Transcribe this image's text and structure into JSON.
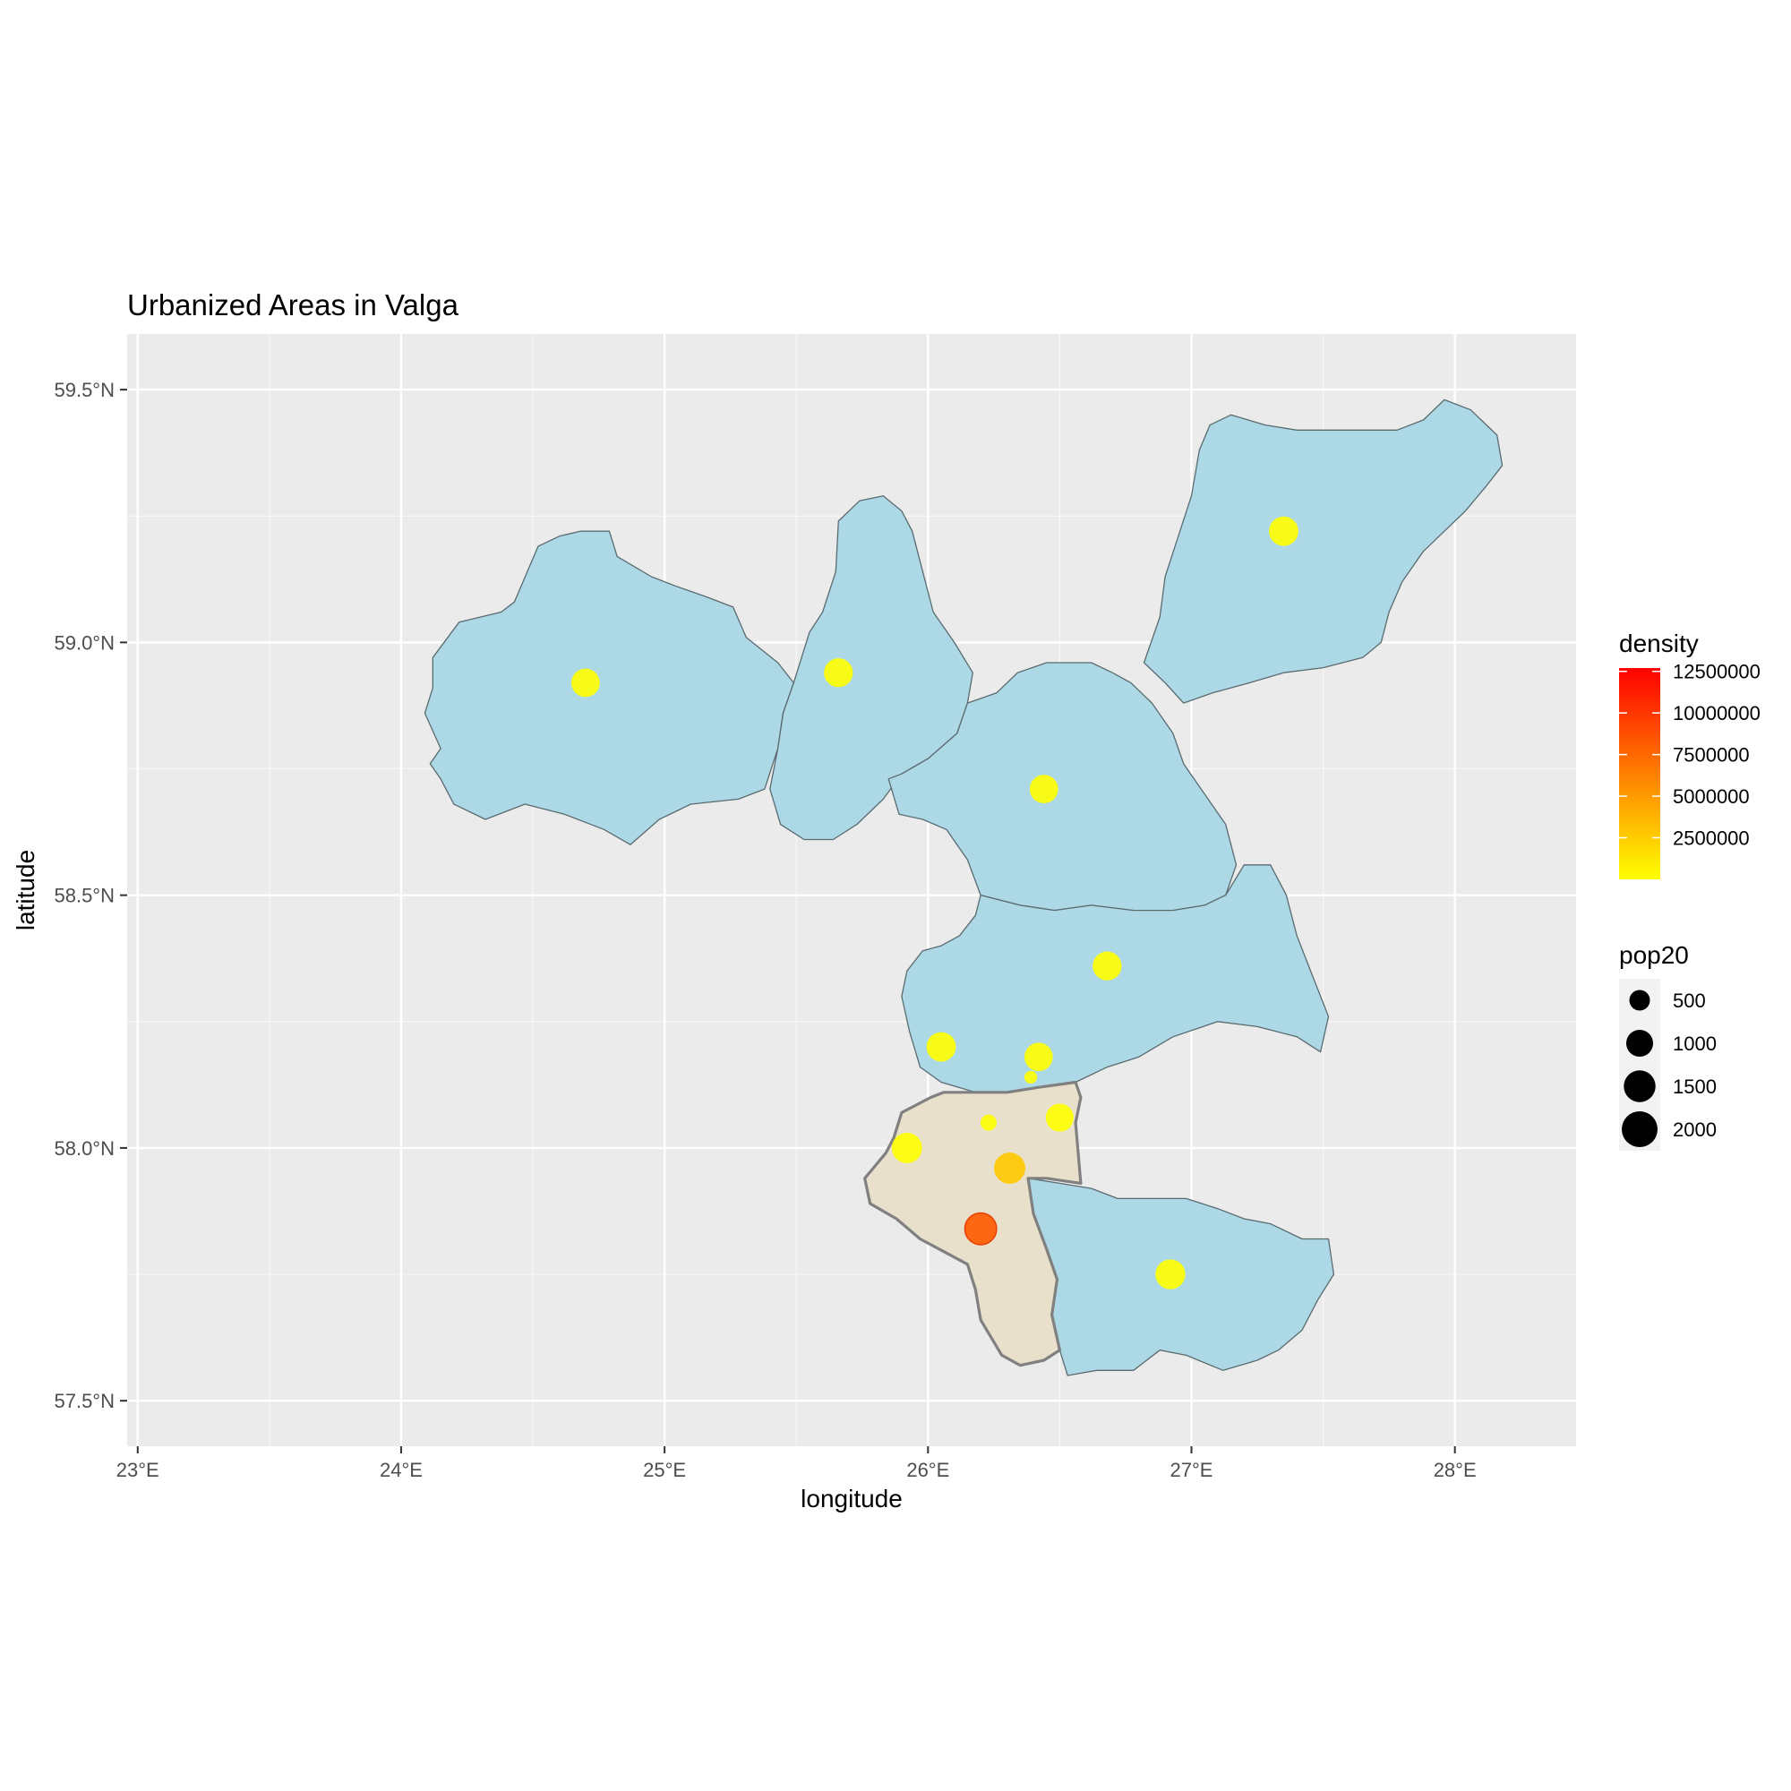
{
  "chart_data": {
    "type": "map",
    "title": "Urbanized Areas in Valga",
    "xlabel": "longitude",
    "ylabel": "latitude",
    "xlim": [
      22.96,
      28.46
    ],
    "ylim": [
      57.41,
      59.61
    ],
    "grid": true,
    "x_ticks": [
      {
        "value": 23,
        "label": "23°E"
      },
      {
        "value": 24,
        "label": "24°E"
      },
      {
        "value": 25,
        "label": "25°E"
      },
      {
        "value": 26,
        "label": "26°E"
      },
      {
        "value": 27,
        "label": "27°E"
      },
      {
        "value": 28,
        "label": "28°E"
      }
    ],
    "y_ticks": [
      {
        "value": 57.5,
        "label": "57.5°N"
      },
      {
        "value": 58.0,
        "label": "58.0°N"
      },
      {
        "value": 58.5,
        "label": "58.5°N"
      },
      {
        "value": 59.0,
        "label": "59.0°N"
      },
      {
        "value": 59.5,
        "label": "59.5°N"
      }
    ],
    "regions": [
      {
        "fill": "#add8e6",
        "highlight": false,
        "coords": [
          [
            24.12,
            58.97
          ],
          [
            24.22,
            59.04
          ],
          [
            24.38,
            59.06
          ],
          [
            24.43,
            59.08
          ],
          [
            24.52,
            59.19
          ],
          [
            24.6,
            59.21
          ],
          [
            24.68,
            59.22
          ],
          [
            24.79,
            59.22
          ],
          [
            24.82,
            59.17
          ],
          [
            24.95,
            59.13
          ],
          [
            25.05,
            59.11
          ],
          [
            25.16,
            59.09
          ],
          [
            25.26,
            59.07
          ],
          [
            25.31,
            59.01
          ],
          [
            25.43,
            58.96
          ],
          [
            25.49,
            58.92
          ],
          [
            25.45,
            58.86
          ],
          [
            25.43,
            58.79
          ],
          [
            25.38,
            58.71
          ],
          [
            25.28,
            58.69
          ],
          [
            25.1,
            58.68
          ],
          [
            24.98,
            58.65
          ],
          [
            24.87,
            58.6
          ],
          [
            24.77,
            58.63
          ],
          [
            24.62,
            58.66
          ],
          [
            24.47,
            58.68
          ],
          [
            24.32,
            58.65
          ],
          [
            24.2,
            58.68
          ],
          [
            24.15,
            58.73
          ],
          [
            24.11,
            58.76
          ],
          [
            24.15,
            58.79
          ],
          [
            24.09,
            58.86
          ],
          [
            24.12,
            58.91
          ]
        ]
      },
      {
        "fill": "#add8e6",
        "highlight": false,
        "coords": [
          [
            25.49,
            58.92
          ],
          [
            25.55,
            59.02
          ],
          [
            25.6,
            59.06
          ],
          [
            25.65,
            59.14
          ],
          [
            25.66,
            59.24
          ],
          [
            25.74,
            59.28
          ],
          [
            25.83,
            59.29
          ],
          [
            25.9,
            59.26
          ],
          [
            25.94,
            59.22
          ],
          [
            25.98,
            59.14
          ],
          [
            26.02,
            59.06
          ],
          [
            26.1,
            59.0
          ],
          [
            26.17,
            58.94
          ],
          [
            26.15,
            58.88
          ],
          [
            26.11,
            58.82
          ],
          [
            26.0,
            58.77
          ],
          [
            25.9,
            58.74
          ],
          [
            25.83,
            58.69
          ],
          [
            25.73,
            58.64
          ],
          [
            25.64,
            58.61
          ],
          [
            25.53,
            58.61
          ],
          [
            25.44,
            58.64
          ],
          [
            25.4,
            58.71
          ],
          [
            25.43,
            58.79
          ],
          [
            25.45,
            58.86
          ]
        ]
      },
      {
        "fill": "#add8e6",
        "highlight": false,
        "coords": [
          [
            26.15,
            58.88
          ],
          [
            26.26,
            58.9
          ],
          [
            26.34,
            58.94
          ],
          [
            26.45,
            58.96
          ],
          [
            26.55,
            58.96
          ],
          [
            26.62,
            58.96
          ],
          [
            26.7,
            58.94
          ],
          [
            26.77,
            58.92
          ],
          [
            26.85,
            58.88
          ],
          [
            26.93,
            58.82
          ],
          [
            26.97,
            58.76
          ],
          [
            27.05,
            58.7
          ],
          [
            27.13,
            58.64
          ],
          [
            27.17,
            58.56
          ],
          [
            27.13,
            58.5
          ],
          [
            27.05,
            58.48
          ],
          [
            26.93,
            58.47
          ],
          [
            26.78,
            58.47
          ],
          [
            26.62,
            58.48
          ],
          [
            26.48,
            58.47
          ],
          [
            26.35,
            58.48
          ],
          [
            26.2,
            58.5
          ],
          [
            26.15,
            58.57
          ],
          [
            26.07,
            58.63
          ],
          [
            25.98,
            58.65
          ],
          [
            25.89,
            58.66
          ],
          [
            25.85,
            58.73
          ],
          [
            25.9,
            58.74
          ],
          [
            26.0,
            58.77
          ],
          [
            26.11,
            58.82
          ]
        ]
      },
      {
        "fill": "#add8e6",
        "highlight": false,
        "coords": [
          [
            26.82,
            58.96
          ],
          [
            26.88,
            59.05
          ],
          [
            26.9,
            59.13
          ],
          [
            26.95,
            59.21
          ],
          [
            27.0,
            59.29
          ],
          [
            27.03,
            59.38
          ],
          [
            27.07,
            59.43
          ],
          [
            27.15,
            59.45
          ],
          [
            27.28,
            59.43
          ],
          [
            27.4,
            59.42
          ],
          [
            27.55,
            59.42
          ],
          [
            27.67,
            59.42
          ],
          [
            27.78,
            59.42
          ],
          [
            27.88,
            59.44
          ],
          [
            27.96,
            59.48
          ],
          [
            28.06,
            59.46
          ],
          [
            28.16,
            59.41
          ],
          [
            28.18,
            59.35
          ],
          [
            28.12,
            59.31
          ],
          [
            28.04,
            59.26
          ],
          [
            27.96,
            59.22
          ],
          [
            27.88,
            59.18
          ],
          [
            27.8,
            59.12
          ],
          [
            27.75,
            59.06
          ],
          [
            27.72,
            59.0
          ],
          [
            27.65,
            58.97
          ],
          [
            27.5,
            58.95
          ],
          [
            27.35,
            58.94
          ],
          [
            27.22,
            58.92
          ],
          [
            27.08,
            58.9
          ],
          [
            26.97,
            58.88
          ],
          [
            26.9,
            58.92
          ]
        ]
      },
      {
        "fill": "#add8e6",
        "highlight": false,
        "coords": [
          [
            26.2,
            58.5
          ],
          [
            26.35,
            58.48
          ],
          [
            26.48,
            58.47
          ],
          [
            26.62,
            58.48
          ],
          [
            26.78,
            58.47
          ],
          [
            26.93,
            58.47
          ],
          [
            27.05,
            58.48
          ],
          [
            27.13,
            58.5
          ],
          [
            27.2,
            58.56
          ],
          [
            27.3,
            58.56
          ],
          [
            27.36,
            58.5
          ],
          [
            27.4,
            58.42
          ],
          [
            27.46,
            58.34
          ],
          [
            27.52,
            58.26
          ],
          [
            27.49,
            58.19
          ],
          [
            27.4,
            58.22
          ],
          [
            27.25,
            58.24
          ],
          [
            27.1,
            58.25
          ],
          [
            26.93,
            58.22
          ],
          [
            26.8,
            58.18
          ],
          [
            26.68,
            58.16
          ],
          [
            26.56,
            58.13
          ],
          [
            26.42,
            58.12
          ],
          [
            26.3,
            58.11
          ],
          [
            26.18,
            58.11
          ],
          [
            26.05,
            58.13
          ],
          [
            25.97,
            58.16
          ],
          [
            25.93,
            58.23
          ],
          [
            25.9,
            58.3
          ],
          [
            25.92,
            58.35
          ],
          [
            25.98,
            58.39
          ],
          [
            26.05,
            58.4
          ],
          [
            26.12,
            58.42
          ],
          [
            26.18,
            58.46
          ]
        ]
      },
      {
        "fill": "#add8e6",
        "highlight": false,
        "coords": [
          [
            26.38,
            57.94
          ],
          [
            26.5,
            57.93
          ],
          [
            26.62,
            57.92
          ],
          [
            26.72,
            57.9
          ],
          [
            26.85,
            57.9
          ],
          [
            26.98,
            57.9
          ],
          [
            27.1,
            57.88
          ],
          [
            27.2,
            57.86
          ],
          [
            27.3,
            57.85
          ],
          [
            27.42,
            57.82
          ],
          [
            27.52,
            57.82
          ],
          [
            27.54,
            57.75
          ],
          [
            27.48,
            57.7
          ],
          [
            27.42,
            57.64
          ],
          [
            27.33,
            57.6
          ],
          [
            27.25,
            57.58
          ],
          [
            27.12,
            57.56
          ],
          [
            26.98,
            57.59
          ],
          [
            26.88,
            57.6
          ],
          [
            26.78,
            57.56
          ],
          [
            26.64,
            57.56
          ],
          [
            26.53,
            57.55
          ],
          [
            26.5,
            57.6
          ],
          [
            26.47,
            57.67
          ],
          [
            26.49,
            57.74
          ],
          [
            26.45,
            57.8
          ],
          [
            26.4,
            57.87
          ]
        ]
      },
      {
        "fill": "#e8e0ca",
        "highlight": true,
        "coords": [
          [
            25.84,
            57.99
          ],
          [
            25.87,
            58.02
          ],
          [
            25.9,
            58.07
          ],
          [
            26.01,
            58.1
          ],
          [
            26.06,
            58.11
          ],
          [
            26.18,
            58.11
          ],
          [
            26.3,
            58.11
          ],
          [
            26.42,
            58.12
          ],
          [
            26.56,
            58.13
          ],
          [
            26.58,
            58.1
          ],
          [
            26.56,
            58.05
          ],
          [
            26.57,
            57.99
          ],
          [
            26.58,
            57.93
          ],
          [
            26.45,
            57.94
          ],
          [
            26.38,
            57.94
          ],
          [
            26.4,
            57.87
          ],
          [
            26.45,
            57.8
          ],
          [
            26.49,
            57.74
          ],
          [
            26.47,
            57.67
          ],
          [
            26.5,
            57.6
          ],
          [
            26.44,
            57.58
          ],
          [
            26.35,
            57.57
          ],
          [
            26.28,
            57.59
          ],
          [
            26.2,
            57.66
          ],
          [
            26.18,
            57.72
          ],
          [
            26.15,
            57.77
          ],
          [
            25.97,
            57.82
          ],
          [
            25.88,
            57.86
          ],
          [
            25.78,
            57.89
          ],
          [
            25.76,
            57.94
          ]
        ]
      }
    ],
    "points": [
      {
        "lon": 24.7,
        "lat": 58.92,
        "pop20": 1150,
        "density": 200000,
        "color": "#ffff00"
      },
      {
        "lon": 25.66,
        "lat": 58.94,
        "pop20": 1200,
        "density": 200000,
        "color": "#ffff00"
      },
      {
        "lon": 27.35,
        "lat": 59.22,
        "pop20": 1250,
        "density": 200000,
        "color": "#ffff00"
      },
      {
        "lon": 26.44,
        "lat": 58.71,
        "pop20": 1150,
        "density": 200000,
        "color": "#ffff00"
      },
      {
        "lon": 26.68,
        "lat": 58.36,
        "pop20": 1200,
        "density": 200000,
        "color": "#ffff00"
      },
      {
        "lon": 26.05,
        "lat": 58.2,
        "pop20": 1250,
        "density": 200000,
        "color": "#ffff00"
      },
      {
        "lon": 26.42,
        "lat": 58.18,
        "pop20": 1150,
        "density": 200000,
        "color": "#ffff00"
      },
      {
        "lon": 26.39,
        "lat": 58.14,
        "pop20": 120,
        "density": 200000,
        "color": "#ffff00"
      },
      {
        "lon": 26.23,
        "lat": 58.05,
        "pop20": 250,
        "density": 200000,
        "color": "#ffff00"
      },
      {
        "lon": 26.5,
        "lat": 58.06,
        "pop20": 1100,
        "density": 200000,
        "color": "#ffff00"
      },
      {
        "lon": 25.92,
        "lat": 58.0,
        "pop20": 1350,
        "density": 200000,
        "color": "#ffff00"
      },
      {
        "lon": 26.31,
        "lat": 57.96,
        "pop20": 1450,
        "density": 4300000,
        "color": "#ffc900"
      },
      {
        "lon": 26.2,
        "lat": 57.84,
        "pop20": 1500,
        "density": 11200000,
        "color": "#ff5a00"
      },
      {
        "lon": 26.92,
        "lat": 57.75,
        "pop20": 1300,
        "density": 200000,
        "color": "#ffff00"
      }
    ],
    "legend_density": {
      "title": "density",
      "min": 0,
      "max": 12700000,
      "low_color": "#ffff00",
      "high_color": "#ff0000",
      "ticks": [
        {
          "value": 2500000,
          "label": "2500000"
        },
        {
          "value": 5000000,
          "label": "5000000"
        },
        {
          "value": 7500000,
          "label": "7500000"
        },
        {
          "value": 10000000,
          "label": "10000000"
        },
        {
          "value": 12500000,
          "label": "12500000"
        }
      ]
    },
    "legend_size": {
      "title": "pop20",
      "entries": [
        {
          "value": 500,
          "label": "500"
        },
        {
          "value": 1000,
          "label": "1000"
        },
        {
          "value": 1500,
          "label": "1500"
        },
        {
          "value": 2000,
          "label": "2000"
        }
      ]
    }
  }
}
